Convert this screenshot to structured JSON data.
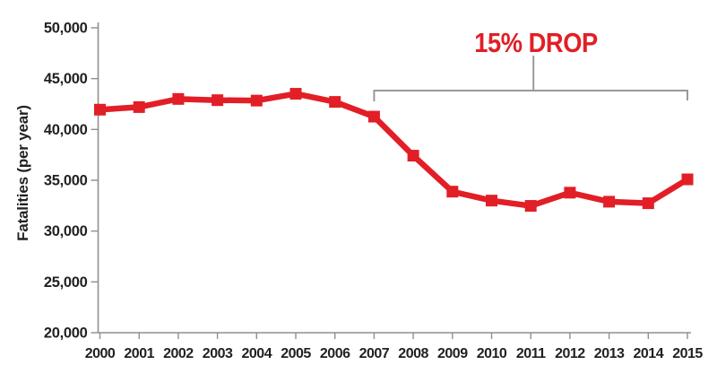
{
  "chart_data": {
    "type": "line",
    "title": "",
    "xlabel": "",
    "ylabel": "Fatalities (per year)",
    "x": [
      2000,
      2001,
      2002,
      2003,
      2004,
      2005,
      2006,
      2007,
      2008,
      2009,
      2010,
      2011,
      2012,
      2013,
      2014,
      2015
    ],
    "xtick_labels": [
      "2000",
      "2001",
      "2002",
      "2003",
      "2004",
      "2005",
      "2006",
      "2007",
      "2008",
      "2009",
      "2010",
      "2011",
      "2012",
      "2013",
      "2014",
      "2015"
    ],
    "series": [
      {
        "name": "fatalities-per-year",
        "marker": "square",
        "values": [
          41945,
          42200,
          43000,
          42880,
          42840,
          43510,
          42710,
          41260,
          37420,
          33880,
          33000,
          32480,
          33780,
          32890,
          32740,
          35090
        ]
      }
    ],
    "ylim": [
      20000,
      50000
    ],
    "yticks": [
      20000,
      25000,
      30000,
      35000,
      40000,
      45000,
      50000
    ],
    "ytick_labels": [
      "20,000",
      "25,000",
      "30,000",
      "35,000",
      "40,000",
      "45,000",
      "50,000"
    ],
    "grid": false,
    "legend": "none",
    "annotation": {
      "label": "15% DROP",
      "bracket_from_year": 2007,
      "bracket_to_year": 2015
    },
    "colors": {
      "line": "#e21e26",
      "marker": "#e21e26",
      "annotation_text": "#e21e26",
      "bracket": "#999999",
      "axis": "#8f8f8f",
      "tick_text": "#231f20"
    }
  }
}
